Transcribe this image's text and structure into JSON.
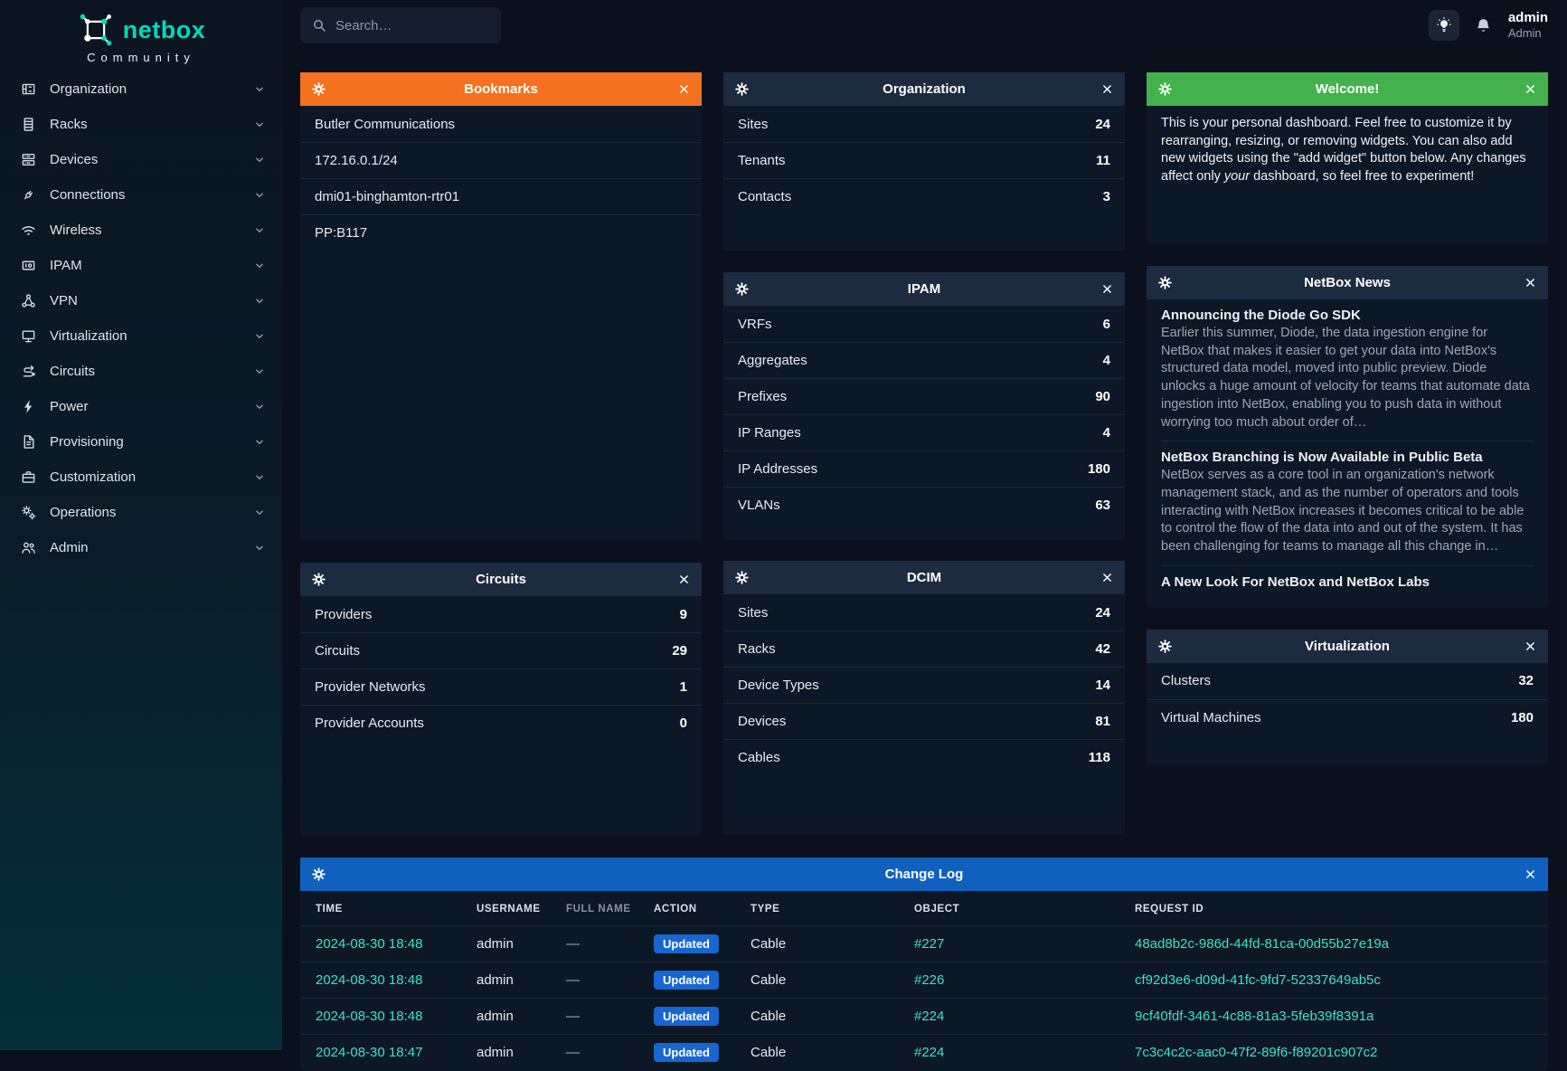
{
  "brand": {
    "name": "netbox",
    "tagline": "Community",
    "accent": "#00d9be"
  },
  "topbar": {
    "search_placeholder": "Search…",
    "username": "admin",
    "role": "Admin"
  },
  "sidebar": {
    "items": [
      {
        "label": "Organization",
        "icon": "building"
      },
      {
        "label": "Racks",
        "icon": "rack"
      },
      {
        "label": "Devices",
        "icon": "server"
      },
      {
        "label": "Connections",
        "icon": "plug"
      },
      {
        "label": "Wireless",
        "icon": "wifi"
      },
      {
        "label": "IPAM",
        "icon": "ipam"
      },
      {
        "label": "VPN",
        "icon": "vpn"
      },
      {
        "label": "Virtualization",
        "icon": "monitor"
      },
      {
        "label": "Circuits",
        "icon": "route"
      },
      {
        "label": "Power",
        "icon": "bolt"
      },
      {
        "label": "Provisioning",
        "icon": "document"
      },
      {
        "label": "Customization",
        "icon": "briefcase"
      },
      {
        "label": "Operations",
        "icon": "gears"
      },
      {
        "label": "Admin",
        "icon": "users"
      }
    ]
  },
  "widgets": {
    "bookmarks": {
      "title": "Bookmarks",
      "header_color": "#f4711f",
      "items": [
        "Butler Communications",
        "172.16.0.1/24",
        "dmi01-binghamton-rtr01",
        "PP:B117"
      ]
    },
    "organization": {
      "title": "Organization",
      "rows": [
        {
          "label": "Sites",
          "value": "24"
        },
        {
          "label": "Tenants",
          "value": "11"
        },
        {
          "label": "Contacts",
          "value": "3"
        }
      ]
    },
    "welcome": {
      "title": "Welcome!",
      "header_color": "#44b24c",
      "text_before": "This is your personal dashboard. Feel free to customize it by rearranging, resizing, or removing widgets. You can also add new widgets using the \"add widget\" button below. Any changes affect only ",
      "text_italic": "your",
      "text_after": " dashboard, so feel free to experiment!"
    },
    "ipam": {
      "title": "IPAM",
      "rows": [
        {
          "label": "VRFs",
          "value": "6"
        },
        {
          "label": "Aggregates",
          "value": "4"
        },
        {
          "label": "Prefixes",
          "value": "90"
        },
        {
          "label": "IP Ranges",
          "value": "4"
        },
        {
          "label": "IP Addresses",
          "value": "180"
        },
        {
          "label": "VLANs",
          "value": "63"
        }
      ]
    },
    "news": {
      "title": "NetBox News",
      "items": [
        {
          "title": "Announcing the Diode Go SDK",
          "body": "Earlier this summer, Diode, the data ingestion engine for NetBox that makes it easier to get your data into NetBox's structured data model, moved into public preview. Diode unlocks a huge amount of velocity for teams that automate data ingestion into NetBox, enabling you to push data in without worrying too much about order of…"
        },
        {
          "title": "NetBox Branching is Now Available in Public Beta",
          "body": "NetBox serves as a core tool in an organization's network management stack, and as the number of operators and tools interacting with NetBox increases it becomes critical to be able to control the flow of the data into and out of the system. It has been challenging for teams to manage all this change in…"
        },
        {
          "title": "A New Look For NetBox and NetBox Labs",
          "body": ""
        }
      ]
    },
    "circuits": {
      "title": "Circuits",
      "rows": [
        {
          "label": "Providers",
          "value": "9"
        },
        {
          "label": "Circuits",
          "value": "29"
        },
        {
          "label": "Provider Networks",
          "value": "1"
        },
        {
          "label": "Provider Accounts",
          "value": "0"
        }
      ]
    },
    "dcim": {
      "title": "DCIM",
      "rows": [
        {
          "label": "Sites",
          "value": "24"
        },
        {
          "label": "Racks",
          "value": "42"
        },
        {
          "label": "Device Types",
          "value": "14"
        },
        {
          "label": "Devices",
          "value": "81"
        },
        {
          "label": "Cables",
          "value": "118"
        }
      ]
    },
    "virtualization": {
      "title": "Virtualization",
      "rows": [
        {
          "label": "Clusters",
          "value": "32"
        },
        {
          "label": "Virtual Machines",
          "value": "180"
        }
      ]
    },
    "changelog": {
      "title": "Change Log",
      "header_color": "#1061bd",
      "badge_color": "#1766d1",
      "link_color": "#3be3c5",
      "columns": [
        {
          "label": "TIME"
        },
        {
          "label": "USERNAME"
        },
        {
          "label": "FULL NAME",
          "muted": true
        },
        {
          "label": "ACTION"
        },
        {
          "label": "TYPE"
        },
        {
          "label": "OBJECT"
        },
        {
          "label": "REQUEST ID"
        }
      ],
      "rows": [
        {
          "time": "2024-08-30 18:48",
          "username": "admin",
          "full_name": "—",
          "action": "Updated",
          "type": "Cable",
          "object": "#227",
          "request_id": "48ad8b2c-986d-44fd-81ca-00d55b27e19a"
        },
        {
          "time": "2024-08-30 18:48",
          "username": "admin",
          "full_name": "—",
          "action": "Updated",
          "type": "Cable",
          "object": "#226",
          "request_id": "cf92d3e6-d09d-41fc-9fd7-52337649ab5c"
        },
        {
          "time": "2024-08-30 18:48",
          "username": "admin",
          "full_name": "—",
          "action": "Updated",
          "type": "Cable",
          "object": "#224",
          "request_id": "9cf40fdf-3461-4c88-81a3-5feb39f8391a"
        },
        {
          "time": "2024-08-30 18:47",
          "username": "admin",
          "full_name": "—",
          "action": "Updated",
          "type": "Cable",
          "object": "#224",
          "request_id": "7c3c4c2c-aac0-47f2-89f6-f89201c907c2"
        }
      ]
    }
  }
}
